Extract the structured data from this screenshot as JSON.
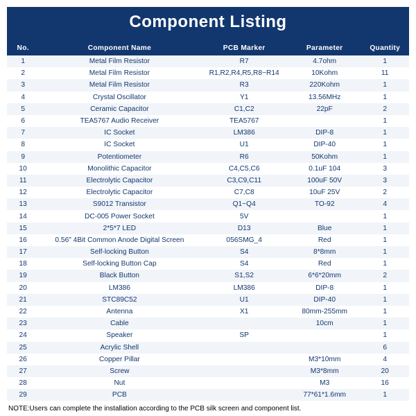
{
  "theme": {
    "brand_color": "#12376e",
    "row_alt_bg": "#f1f4f9",
    "row_bg": "#ffffff",
    "text_on_brand": "#ffffff",
    "header_font_size": 24,
    "body_font_size": 10.2,
    "note_font_size": 10
  },
  "title": "Component Listing",
  "columns": [
    "No.",
    "Component Name",
    "PCB Marker",
    "Parameter",
    "Quantity"
  ],
  "col_widths_pct": [
    8,
    40,
    22,
    18,
    12
  ],
  "rows": [
    [
      "1",
      "Metal Film Resistor",
      "R7",
      "4.7ohm",
      "1"
    ],
    [
      "2",
      "Metal Film Resistor",
      "R1,R2,R4,R5,R8~R14",
      "10Kohm",
      "11"
    ],
    [
      "3",
      "Metal Film Resistor",
      "R3",
      "220Kohm",
      "1"
    ],
    [
      "4",
      "Crystal Oscillator",
      "Y1",
      "13.56MHz",
      "1"
    ],
    [
      "5",
      "Ceramic Capacitor",
      "C1,C2",
      "22pF",
      "2"
    ],
    [
      "6",
      "TEA5767 Audio Receiver",
      "TEA5767",
      "",
      "1"
    ],
    [
      "7",
      "IC Socket",
      "LM386",
      "DIP-8",
      "1"
    ],
    [
      "8",
      "IC Socket",
      "U1",
      "DIP-40",
      "1"
    ],
    [
      "9",
      "Potentiometer",
      "R6",
      "50Kohm",
      "1"
    ],
    [
      "10",
      "Monolithic Capacitor",
      "C4,C5,C6",
      "0.1uF 104",
      "3"
    ],
    [
      "11",
      "Electrolytic Capacitor",
      "C3,C9,C11",
      "100uF 50V",
      "3"
    ],
    [
      "12",
      "Electrolytic Capacitor",
      "C7,C8",
      "10uF 25V",
      "2"
    ],
    [
      "13",
      "S9012 Transistor",
      "Q1~Q4",
      "TO-92",
      "4"
    ],
    [
      "14",
      "DC-005 Power Socket",
      "5V",
      "",
      "1"
    ],
    [
      "15",
      "2*5*7 LED",
      "D13",
      "Blue",
      "1"
    ],
    [
      "16",
      "0.56\" 4Bit Common Anode Digital Screen",
      "056SMG_4",
      "Red",
      "1"
    ],
    [
      "17",
      "Self-locking Button",
      "S4",
      "8*8mm",
      "1"
    ],
    [
      "18",
      "Self-locking Button Cap",
      "S4",
      "Red",
      "1"
    ],
    [
      "19",
      "Black Button",
      "S1,S2",
      "6*6*20mm",
      "2"
    ],
    [
      "20",
      "LM386",
      "LM386",
      "DIP-8",
      "1"
    ],
    [
      "21",
      "STC89C52",
      "U1",
      "DIP-40",
      "1"
    ],
    [
      "22",
      "Antenna",
      "X1",
      "80mm-255mm",
      "1"
    ],
    [
      "23",
      "Cable",
      "",
      "10cm",
      "1"
    ],
    [
      "24",
      "Speaker",
      "SP",
      "",
      "1"
    ],
    [
      "25",
      "Acrylic Shell",
      "",
      "",
      "6"
    ],
    [
      "26",
      "Copper Pillar",
      "",
      "M3*10mm",
      "4"
    ],
    [
      "27",
      "Screw",
      "",
      "M3*8mm",
      "20"
    ],
    [
      "28",
      "Nut",
      "",
      "M3",
      "16"
    ],
    [
      "29",
      "PCB",
      "",
      "77*61*1.6mm",
      "1"
    ]
  ],
  "note": "NOTE:Users can complete the installation according to the PCB silk screen and component list."
}
